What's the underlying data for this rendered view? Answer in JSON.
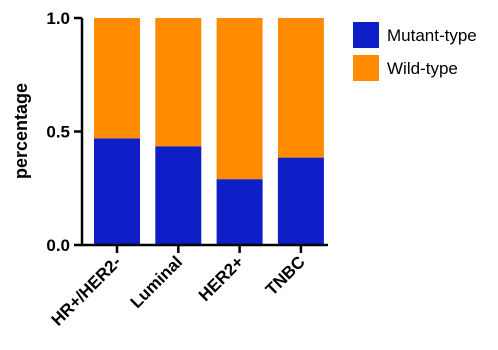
{
  "chart_data": {
    "type": "bar",
    "stacked": true,
    "categories": [
      "HR+/HER2-",
      "Luminal",
      "HER2+",
      "TNBC"
    ],
    "series": [
      {
        "name": "Mutant-type",
        "color": "#0f1fc8",
        "values": [
          0.47,
          0.435,
          0.29,
          0.385
        ]
      },
      {
        "name": "Wild-type",
        "color": "#ff8c00",
        "values": [
          0.53,
          0.565,
          0.71,
          0.615
        ]
      }
    ],
    "title": "",
    "xlabel": "",
    "ylabel": "percentage",
    "ylim": [
      0,
      1.0
    ],
    "yticks": [
      "0.0",
      "0.5",
      "1.0"
    ],
    "grid": false,
    "legend_position": "top-right"
  }
}
